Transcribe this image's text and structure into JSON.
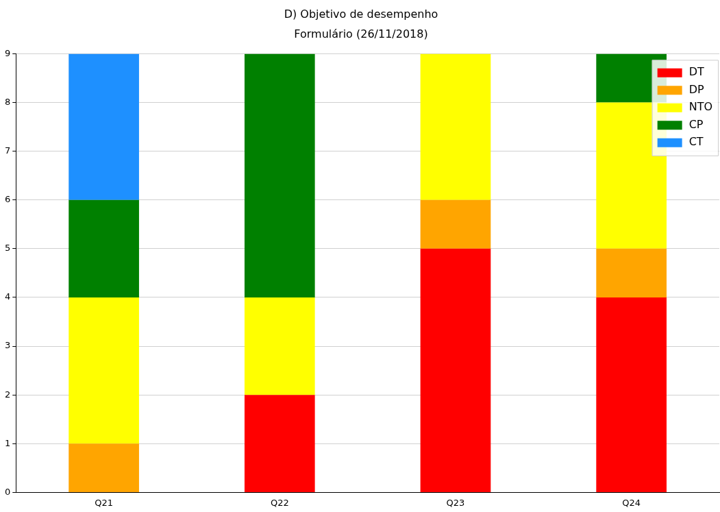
{
  "chart_data": {
    "type": "bar",
    "title": "D) Objetivo de desempenho",
    "subtitle": "Formulário (26/11/2018)",
    "categories": [
      "Q21",
      "Q22",
      "Q23",
      "Q24"
    ],
    "stacked": true,
    "series": [
      {
        "name": "DT",
        "color": "#ff0000",
        "values": [
          0,
          2,
          5,
          4
        ]
      },
      {
        "name": "DP",
        "color": "#ffa500",
        "values": [
          1,
          0,
          1,
          1
        ]
      },
      {
        "name": "NTO",
        "color": "#ffff00",
        "values": [
          3,
          2,
          3,
          3
        ]
      },
      {
        "name": "CP",
        "color": "#008000",
        "values": [
          2,
          5,
          0,
          1
        ]
      },
      {
        "name": "CT",
        "color": "#1e90ff",
        "values": [
          3,
          0,
          0,
          0
        ]
      }
    ],
    "ylim": [
      0,
      9
    ],
    "yticks": [
      0,
      1,
      2,
      3,
      4,
      5,
      6,
      7,
      8,
      9
    ],
    "grid": "y",
    "legend": "top right"
  }
}
